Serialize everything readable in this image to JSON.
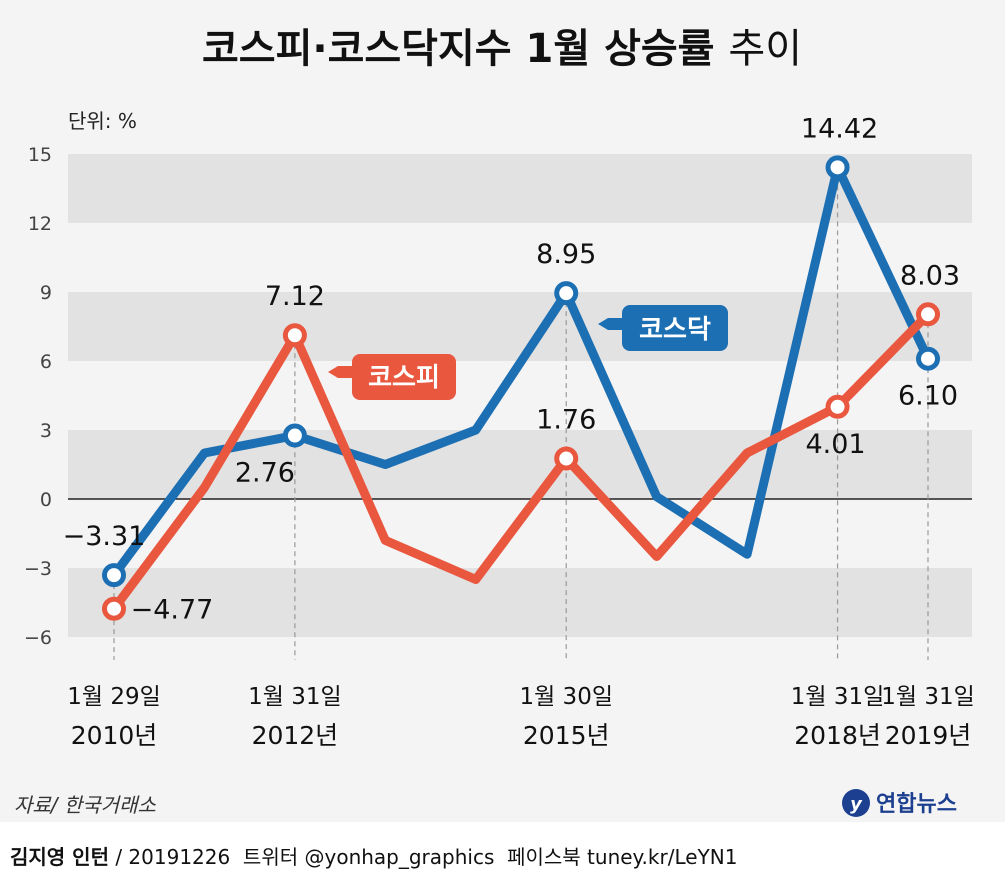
{
  "header": {
    "title_main": "코스피·코스닥지수 1월 상승률",
    "title_light": "추이"
  },
  "chart_data": {
    "type": "line",
    "unit_label": "단위: %",
    "ylim": [
      -6,
      15
    ],
    "yticks": [
      "15",
      "12",
      "9",
      "6",
      "3",
      "0",
      "−3",
      "−6"
    ],
    "ytick_values": [
      15,
      12,
      9,
      6,
      3,
      0,
      -3,
      -6
    ],
    "x": [
      2010,
      2011,
      2012,
      2013,
      2014,
      2015,
      2016,
      2017,
      2018,
      2019
    ],
    "xtick_labels": [
      {
        "x": 2010,
        "date": "1월 29일",
        "year": "2010년"
      },
      {
        "x": 2012,
        "date": "1월 31일",
        "year": "2012년"
      },
      {
        "x": 2015,
        "date": "1월 30일",
        "year": "2015년"
      },
      {
        "x": 2018,
        "date": "1월 31일",
        "year": "2018년"
      },
      {
        "x": 2019,
        "date": "1월 31일",
        "year": "2019년"
      }
    ],
    "series": [
      {
        "name": "코스닥",
        "color": "#1d6fb3",
        "values": [
          -3.31,
          2.0,
          2.76,
          1.5,
          3.0,
          8.95,
          0.1,
          -2.4,
          14.42,
          6.1
        ],
        "labels": [
          {
            "x": 2010,
            "text": "−3.31"
          },
          {
            "x": 2012,
            "text": "2.76"
          },
          {
            "x": 2015,
            "text": "8.95"
          },
          {
            "x": 2018,
            "text": "14.42"
          },
          {
            "x": 2019,
            "text": "6.10"
          }
        ]
      },
      {
        "name": "코스피",
        "color": "#e9573f",
        "values": [
          -4.77,
          0.5,
          7.12,
          -1.8,
          -3.5,
          1.76,
          -2.5,
          2.0,
          4.01,
          8.03
        ],
        "labels": [
          {
            "x": 2010,
            "text": "−4.77"
          },
          {
            "x": 2012,
            "text": "7.12"
          },
          {
            "x": 2015,
            "text": "1.76"
          },
          {
            "x": 2018,
            "text": "4.01"
          },
          {
            "x": 2019,
            "text": "8.03"
          }
        ]
      }
    ],
    "grid": "horizontal bands"
  },
  "footer": {
    "source": "자료/ 한국거래소",
    "logo": "연합뉴스",
    "credit_bold": "김지영 인턴",
    "credit_rest": " / 20191226  트위터 @yonhap_graphics  페이스북 tuney.kr/LeYN1"
  }
}
